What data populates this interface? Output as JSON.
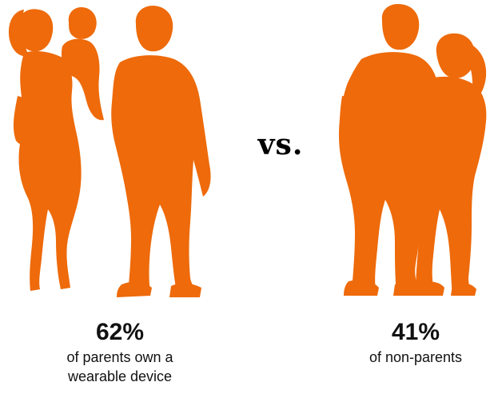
{
  "accent_color": "#EE6A0A",
  "vs_label": "vs.",
  "left": {
    "percent": "62%",
    "caption_line1": "of parents own a",
    "caption_line2": "wearable device",
    "icon": "family-silhouette-icon"
  },
  "right": {
    "percent": "41%",
    "caption_line1": "of non-parents",
    "icon": "couple-silhouette-icon"
  }
}
